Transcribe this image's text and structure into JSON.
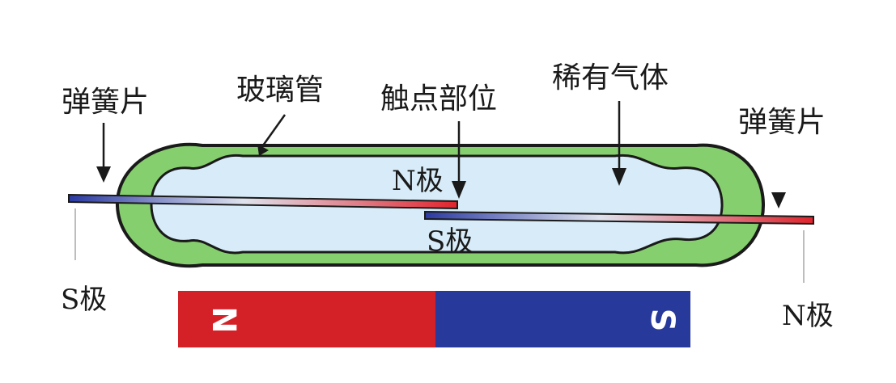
{
  "labels": {
    "reed_left": "弹簧片",
    "glass_tube": "玻璃管",
    "contact_point": "触点部位",
    "inert_gas": "稀有气体",
    "reed_right": "弹簧片",
    "pole_n_inside": "N极",
    "pole_s_inside": "S极",
    "pole_s_outside": "S极",
    "pole_n_outside": "N极"
  },
  "magnet": {
    "north_label": "N",
    "south_label": "S",
    "north_color": "#d42128",
    "south_color": "#27399b"
  },
  "colors": {
    "glass_outer": "#86cf6e",
    "gas_fill": "#d7ecf8",
    "outline": "#1a1a1a",
    "reed_red": "#e0242d",
    "reed_blue": "#2b3aa2"
  }
}
